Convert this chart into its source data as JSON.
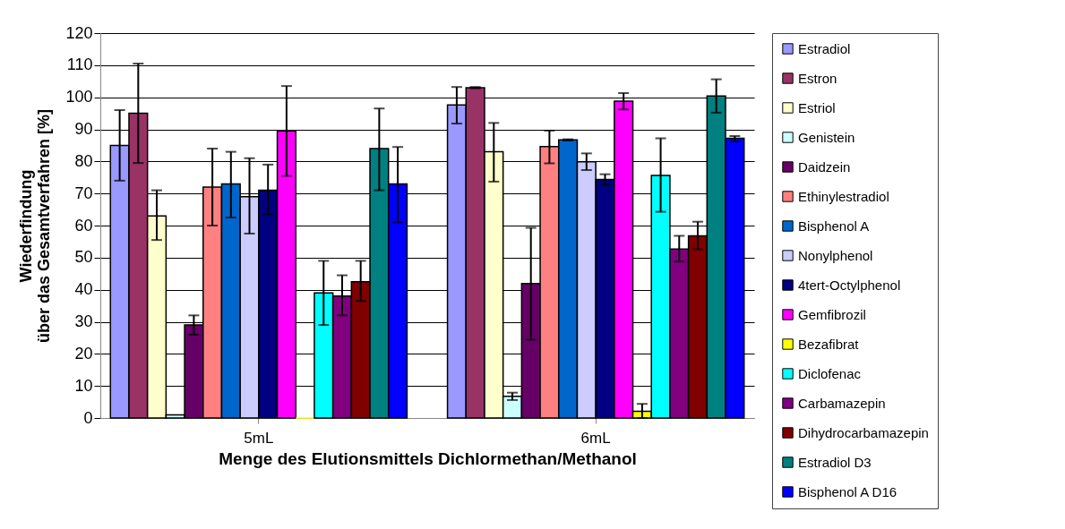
{
  "chart_data": {
    "type": "bar",
    "xlabel": "Menge des Elutionsmittels Dichlormethan/Methanol",
    "ylabel": "Wiederfindung\nüber das Gesamtverfahren [%]",
    "categories": [
      "5mL",
      "6mL"
    ],
    "ylim": [
      0,
      120
    ],
    "yticks": [
      0,
      10,
      20,
      30,
      40,
      50,
      60,
      70,
      80,
      90,
      100,
      110,
      120
    ],
    "grid": "y",
    "legend": "right",
    "series": [
      {
        "name": "Estradiol",
        "color": "#9999ff",
        "values": [
          85,
          97.6
        ],
        "errors": [
          [
            74,
            96
          ],
          [
            91.8,
            103.2
          ]
        ]
      },
      {
        "name": "Estron",
        "color": "#993366",
        "values": [
          95,
          103
        ],
        "errors": [
          [
            79.5,
            110.5
          ],
          [
            102.8,
            103.2
          ]
        ]
      },
      {
        "name": "Estriol",
        "color": "#ffffcc",
        "values": [
          63,
          83
        ],
        "errors": [
          [
            55.5,
            71
          ],
          [
            73.7,
            92
          ]
        ]
      },
      {
        "name": "Genistein",
        "color": "#ccffff",
        "values": [
          1,
          6.8
        ],
        "errors": [
          null,
          [
            5.6,
            7.9
          ]
        ]
      },
      {
        "name": "Daidzein",
        "color": "#660066",
        "values": [
          29,
          41.9
        ],
        "errors": [
          [
            26,
            32
          ],
          [
            24.4,
            59.3
          ]
        ]
      },
      {
        "name": "Ethinylestradiol",
        "color": "#ff8080",
        "values": [
          72,
          84.6
        ],
        "errors": [
          [
            60,
            84
          ],
          [
            79.4,
            89.6
          ]
        ]
      },
      {
        "name": "Bisphenol A",
        "color": "#0066cc",
        "values": [
          73,
          86.7
        ],
        "errors": [
          [
            62.5,
            83
          ],
          [
            86.5,
            86.9
          ]
        ]
      },
      {
        "name": "Nonylphenol",
        "color": "#ccccff",
        "values": [
          69,
          79.9
        ],
        "errors": [
          [
            57.5,
            81
          ],
          [
            77.3,
            82.5
          ]
        ]
      },
      {
        "name": "4tert-Octylphenol",
        "color": "#000080",
        "values": [
          71,
          74.4
        ],
        "errors": [
          [
            63.5,
            79
          ],
          [
            72.7,
            76
          ]
        ]
      },
      {
        "name": "Gemfibrozil",
        "color": "#ff00ff",
        "values": [
          89.5,
          98.8
        ],
        "errors": [
          [
            75.5,
            103.5
          ],
          [
            96.2,
            101.3
          ]
        ]
      },
      {
        "name": "Bezafibrat",
        "color": "#ffff00",
        "values": [
          0,
          2.1
        ],
        "errors": [
          null,
          [
            0,
            4.4
          ]
        ]
      },
      {
        "name": "Diclofenac",
        "color": "#00ffff",
        "values": [
          39,
          75.6
        ],
        "errors": [
          [
            29,
            49
          ],
          [
            64.3,
            87.2
          ]
        ]
      },
      {
        "name": "Carbamazepin",
        "color": "#800080",
        "values": [
          38,
          52.7
        ],
        "errors": [
          [
            32,
            44.5
          ],
          [
            48.8,
            56.8
          ]
        ]
      },
      {
        "name": "Dihydrocarbamazepin",
        "color": "#800000",
        "values": [
          42.5,
          56.8
        ],
        "errors": [
          [
            36.5,
            49
          ],
          [
            52.6,
            61.2
          ]
        ]
      },
      {
        "name": "Estradiol D3",
        "color": "#008080",
        "values": [
          84,
          100.4
        ],
        "errors": [
          [
            71,
            96.5
          ],
          [
            95.2,
            105.6
          ]
        ]
      },
      {
        "name": "Bisphenol A D16",
        "color": "#0000ff",
        "values": [
          73,
          87.2
        ],
        "errors": [
          [
            61,
            84.5
          ],
          [
            86.2,
            87.9
          ]
        ]
      }
    ]
  }
}
